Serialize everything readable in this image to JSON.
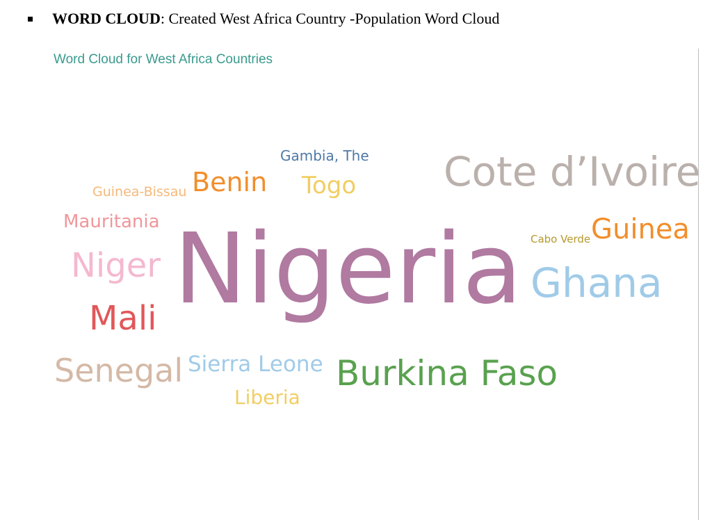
{
  "document": {
    "heading_bold": "WORD CLOUD",
    "heading_rest": ": Created West Africa Country -Population Word Cloud"
  },
  "chart_data": {
    "type": "wordcloud",
    "title": "Word Cloud for West Africa Countries",
    "title_color": "#3a9a8e",
    "words": [
      {
        "text": "Nigeria",
        "color": "#b07aa1"
      },
      {
        "text": "Cote d’Ivoire",
        "color": "#bab0ac"
      },
      {
        "text": "Burkina Faso",
        "color": "#59a14f"
      },
      {
        "text": "Ghana",
        "color": "#a0cbe8"
      },
      {
        "text": "Senegal",
        "color": "#d4b9a6"
      },
      {
        "text": "Niger",
        "color": "#f4b8cf"
      },
      {
        "text": "Mali",
        "color": "#e15759"
      },
      {
        "text": "Guinea",
        "color": "#f28e2b"
      },
      {
        "text": "Benin",
        "color": "#f28e2b"
      },
      {
        "text": "Togo",
        "color": "#f1ce63"
      },
      {
        "text": "Sierra Leone",
        "color": "#a0cbe8"
      },
      {
        "text": "Liberia",
        "color": "#f1ce63"
      },
      {
        "text": "Mauritania",
        "color": "#f0969a"
      },
      {
        "text": "Gambia, The",
        "color": "#4e79a7"
      },
      {
        "text": "Guinea-Bissau",
        "color": "#f6b87a"
      },
      {
        "text": "Cabo Verde",
        "color": "#b6992d"
      }
    ]
  }
}
